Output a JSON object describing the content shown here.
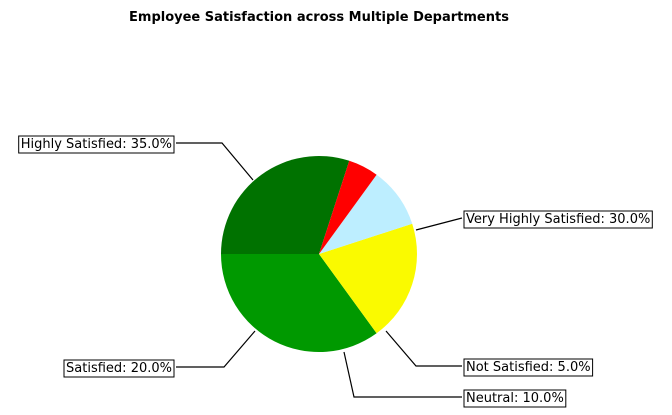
{
  "chart_data": {
    "type": "pie",
    "title": "Employee Satisfaction across Multiple Departments",
    "start_angle_deg": 72,
    "direction": "counterclockwise",
    "slices": [
      {
        "label": "Very Highly Satisfied",
        "value": 30.0,
        "display": "Very Highly Satisfied: 30.0%",
        "color": "#007200"
      },
      {
        "label": "Highly Satisfied",
        "value": 35.0,
        "display": "Highly Satisfied: 35.0%",
        "color": "#009900"
      },
      {
        "label": "Satisfied",
        "value": 20.0,
        "display": "Satisfied: 20.0%",
        "color": "#fafa00"
      },
      {
        "label": "Neutral",
        "value": 10.0,
        "display": "Neutral: 10.0%",
        "color": "#bdeeff"
      },
      {
        "label": "Not Satisfied",
        "value": 5.0,
        "display": "Not Satisfied: 5.0%",
        "color": "#ff0000"
      }
    ]
  }
}
